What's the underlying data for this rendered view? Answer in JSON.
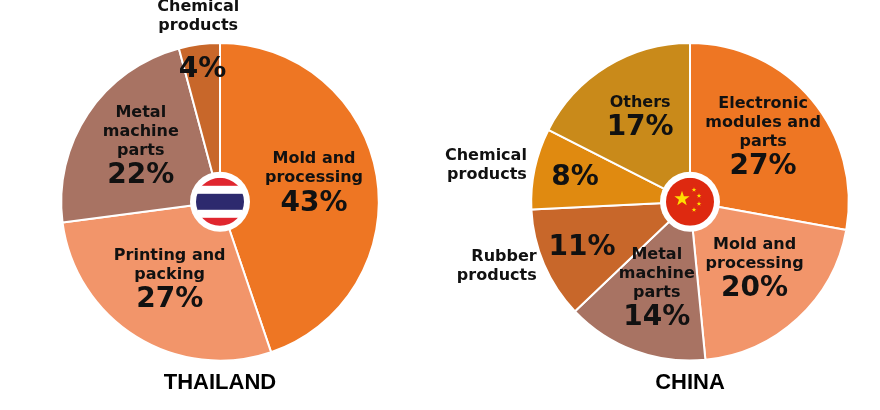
{
  "chart_data": [
    {
      "type": "pie",
      "title": "THAILAND",
      "categories": [
        "Mold and processing",
        "Printing and packing",
        "Metal machine parts",
        "Chemical products"
      ],
      "values": [
        43,
        27,
        22,
        4
      ],
      "value_labels": [
        "43%",
        "27%",
        "22%",
        "4%"
      ],
      "colors": [
        "#ee7623",
        "#f2956a",
        "#a87363",
        "#c8672a"
      ],
      "data_labels": true
    },
    {
      "type": "pie",
      "title": "CHINA",
      "categories": [
        "Electronic modules and parts",
        "Mold and processing",
        "Metal machine parts",
        "Rubber products",
        "Chemical products",
        "Others"
      ],
      "values": [
        27,
        20,
        14,
        11,
        8,
        17
      ],
      "value_labels": [
        "27%",
        "20%",
        "14%",
        "11%",
        "8%",
        "17%"
      ],
      "colors": [
        "#ee7623",
        "#f2956a",
        "#a87363",
        "#c8672a",
        "#e08a10",
        "#c98a1a"
      ],
      "data_labels": true
    }
  ]
}
